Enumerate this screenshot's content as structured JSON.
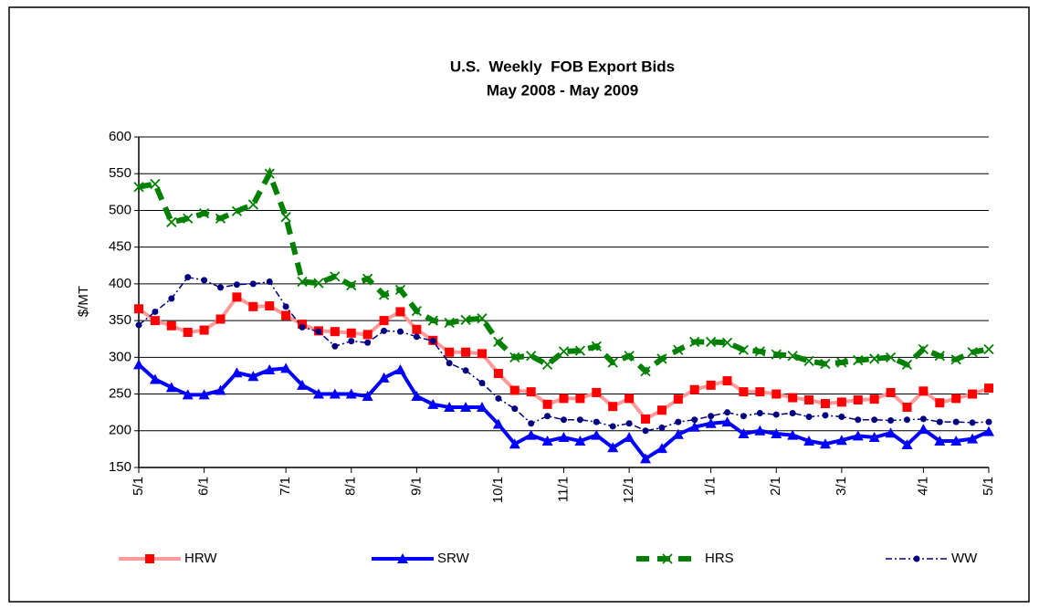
{
  "chart_data": {
    "type": "line",
    "title": [
      "U.S.  Weekly  FOB Export Bids",
      "May 2008 - May 2009"
    ],
    "y_label": "$/MT",
    "categories": [
      "5/1",
      null,
      null,
      null,
      "6/1",
      null,
      null,
      null,
      null,
      "7/1",
      null,
      null,
      null,
      "8/1",
      null,
      null,
      null,
      "9/1",
      null,
      null,
      null,
      null,
      "10/1",
      null,
      null,
      null,
      "11/1",
      null,
      null,
      null,
      "12/1",
      null,
      null,
      null,
      null,
      "1/1",
      null,
      null,
      null,
      "2/1",
      null,
      null,
      null,
      "3/1",
      null,
      null,
      null,
      null,
      "4/1",
      null,
      null,
      null,
      "5/1"
    ],
    "ylim": [
      150,
      600
    ],
    "yticks": [
      150,
      200,
      250,
      300,
      350,
      400,
      450,
      500,
      550,
      600
    ],
    "grid": true,
    "legend": "bottom",
    "series": [
      {
        "name": "HRW",
        "color": "#ff9a9a",
        "marker_color": "#ff0000",
        "marker": "square",
        "dash": "solid",
        "values": [
          366,
          350,
          343,
          334,
          337,
          352,
          382,
          369,
          370,
          357,
          345,
          336,
          335,
          333,
          331,
          350,
          362,
          338,
          323,
          307,
          307,
          305,
          278,
          255,
          253,
          236,
          244,
          244,
          252,
          233,
          244,
          216,
          228,
          243,
          256,
          262,
          268,
          253,
          253,
          250,
          245,
          242,
          237,
          239,
          242,
          243,
          252,
          232,
          254,
          238,
          244,
          250,
          258
        ]
      },
      {
        "name": "SRW",
        "color": "#0000ff",
        "marker_color": "#0000ff",
        "marker": "triangle",
        "dash": "solid",
        "values": [
          290,
          270,
          259,
          249,
          249,
          255,
          279,
          274,
          283,
          285,
          262,
          250,
          250,
          250,
          247,
          272,
          283,
          247,
          236,
          232,
          232,
          232,
          209,
          182,
          194,
          186,
          191,
          186,
          194,
          177,
          191,
          162,
          176,
          195,
          205,
          210,
          212,
          196,
          200,
          196,
          194,
          186,
          182,
          187,
          193,
          191,
          197,
          181,
          202,
          186,
          186,
          189,
          199
        ]
      },
      {
        "name": "HRS",
        "color": "#008000",
        "marker_color": "#008000",
        "marker": "x",
        "dash": "dashed",
        "values": [
          532,
          536,
          484,
          489,
          496,
          489,
          499,
          508,
          550,
          491,
          403,
          401,
          410,
          398,
          407,
          385,
          392,
          363,
          350,
          347,
          351,
          353,
          321,
          300,
          302,
          290,
          308,
          309,
          315,
          293,
          302,
          281,
          298,
          310,
          321,
          321,
          320,
          310,
          308,
          304,
          302,
          295,
          291,
          293,
          296,
          298,
          300,
          290,
          311,
          302,
          297,
          307,
          311
        ]
      },
      {
        "name": "WW",
        "color": "#000080",
        "marker_color": "#000080",
        "marker": "circle",
        "dash": "dashdot",
        "values": [
          344,
          362,
          380,
          409,
          405,
          395,
          399,
          400,
          403,
          369,
          341,
          335,
          315,
          322,
          320,
          336,
          335,
          328,
          322,
          292,
          282,
          265,
          244,
          230,
          210,
          220,
          215,
          215,
          212,
          206,
          210,
          200,
          204,
          212,
          215,
          220,
          225,
          220,
          224,
          222,
          224,
          219,
          221,
          219,
          215,
          215,
          214,
          215,
          216,
          212,
          212,
          211,
          212
        ]
      }
    ]
  }
}
